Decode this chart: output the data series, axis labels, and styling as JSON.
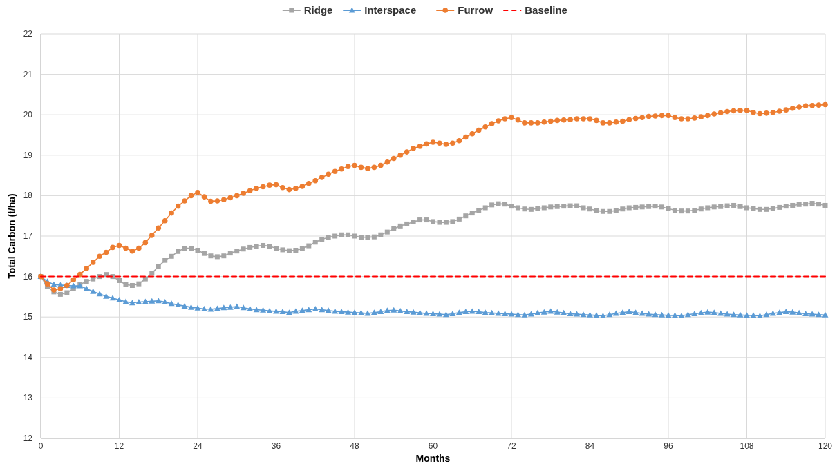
{
  "chart_data": {
    "type": "line",
    "xlabel": "Months",
    "ylabel": "Total Carbon (t/ha)",
    "x": [
      0,
      1,
      2,
      3,
      4,
      5,
      6,
      7,
      8,
      9,
      10,
      11,
      12,
      13,
      14,
      15,
      16,
      17,
      18,
      19,
      20,
      21,
      22,
      23,
      24,
      25,
      26,
      27,
      28,
      29,
      30,
      31,
      32,
      33,
      34,
      35,
      36,
      37,
      38,
      39,
      40,
      41,
      42,
      43,
      44,
      45,
      46,
      47,
      48,
      49,
      50,
      51,
      52,
      53,
      54,
      55,
      56,
      57,
      58,
      59,
      60,
      61,
      62,
      63,
      64,
      65,
      66,
      67,
      68,
      69,
      70,
      71,
      72,
      73,
      74,
      75,
      76,
      77,
      78,
      79,
      80,
      81,
      82,
      83,
      84,
      85,
      86,
      87,
      88,
      89,
      90,
      91,
      92,
      93,
      94,
      95,
      96,
      97,
      98,
      99,
      100,
      101,
      102,
      103,
      104,
      105,
      106,
      107,
      108,
      109,
      110,
      111,
      112,
      113,
      114,
      115,
      116,
      117,
      118,
      119,
      120
    ],
    "xlim": [
      0,
      120
    ],
    "xticks": [
      0,
      12,
      24,
      36,
      48,
      60,
      72,
      84,
      96,
      108,
      120
    ],
    "ylim": [
      12,
      22
    ],
    "yticks": [
      12,
      13,
      14,
      15,
      16,
      17,
      18,
      19,
      20,
      21,
      22
    ],
    "grid": true,
    "legend": "top",
    "series": [
      {
        "name": "Ridge",
        "color": "#a5a5a5",
        "marker": "square",
        "line_style": "solid",
        "values": [
          16.0,
          15.75,
          15.62,
          15.56,
          15.6,
          15.7,
          15.8,
          15.88,
          15.94,
          16.0,
          16.05,
          16.0,
          15.9,
          15.8,
          15.78,
          15.82,
          15.94,
          16.08,
          16.25,
          16.4,
          16.5,
          16.62,
          16.7,
          16.7,
          16.65,
          16.57,
          16.51,
          16.49,
          16.51,
          16.58,
          16.63,
          16.68,
          16.72,
          16.75,
          16.77,
          16.75,
          16.7,
          16.66,
          16.64,
          16.65,
          16.69,
          16.76,
          16.85,
          16.92,
          16.97,
          17.0,
          17.03,
          17.03,
          17.0,
          16.97,
          16.97,
          16.98,
          17.03,
          17.1,
          17.18,
          17.25,
          17.3,
          17.35,
          17.4,
          17.4,
          17.36,
          17.34,
          17.34,
          17.36,
          17.42,
          17.5,
          17.57,
          17.64,
          17.7,
          17.77,
          17.8,
          17.79,
          17.74,
          17.7,
          17.67,
          17.66,
          17.68,
          17.7,
          17.72,
          17.73,
          17.74,
          17.75,
          17.75,
          17.7,
          17.67,
          17.63,
          17.61,
          17.61,
          17.63,
          17.67,
          17.7,
          17.71,
          17.72,
          17.73,
          17.74,
          17.72,
          17.68,
          17.64,
          17.62,
          17.62,
          17.64,
          17.67,
          17.7,
          17.72,
          17.73,
          17.75,
          17.76,
          17.73,
          17.7,
          17.68,
          17.66,
          17.66,
          17.68,
          17.71,
          17.74,
          17.76,
          17.78,
          17.79,
          17.81,
          17.79,
          17.76
        ]
      },
      {
        "name": "Interspace",
        "color": "#5b9bd5",
        "marker": "triangle",
        "line_style": "solid",
        "values": [
          16.0,
          15.88,
          15.8,
          15.79,
          15.78,
          15.77,
          15.77,
          15.7,
          15.63,
          15.57,
          15.51,
          15.47,
          15.42,
          15.38,
          15.35,
          15.37,
          15.38,
          15.39,
          15.4,
          15.37,
          15.33,
          15.3,
          15.27,
          15.24,
          15.22,
          15.2,
          15.19,
          15.21,
          15.23,
          15.24,
          15.26,
          15.23,
          15.2,
          15.18,
          15.17,
          15.15,
          15.14,
          15.13,
          15.11,
          15.14,
          15.16,
          15.18,
          15.2,
          15.18,
          15.16,
          15.14,
          15.13,
          15.12,
          15.11,
          15.1,
          15.09,
          15.11,
          15.13,
          15.16,
          15.17,
          15.15,
          15.13,
          15.12,
          15.1,
          15.09,
          15.08,
          15.07,
          15.06,
          15.08,
          15.11,
          15.13,
          15.14,
          15.13,
          15.11,
          15.1,
          15.09,
          15.08,
          15.07,
          15.06,
          15.05,
          15.07,
          15.1,
          15.12,
          15.14,
          15.12,
          15.1,
          15.08,
          15.07,
          15.06,
          15.05,
          15.04,
          15.03,
          15.06,
          15.09,
          15.11,
          15.13,
          15.11,
          15.09,
          15.07,
          15.06,
          15.05,
          15.04,
          15.04,
          15.03,
          15.06,
          15.08,
          15.1,
          15.12,
          15.11,
          15.09,
          15.07,
          15.06,
          15.05,
          15.04,
          15.04,
          15.03,
          15.06,
          15.09,
          15.11,
          15.13,
          15.12,
          15.1,
          15.08,
          15.07,
          15.06,
          15.05
        ]
      },
      {
        "name": "Furrow",
        "color": "#ed7d31",
        "marker": "circle",
        "line_style": "solid",
        "values": [
          16.0,
          15.82,
          15.67,
          15.7,
          15.78,
          15.92,
          16.05,
          16.2,
          16.35,
          16.5,
          16.6,
          16.72,
          16.77,
          16.7,
          16.63,
          16.7,
          16.84,
          17.02,
          17.2,
          17.38,
          17.57,
          17.74,
          17.87,
          18.0,
          18.08,
          17.97,
          17.86,
          17.87,
          17.9,
          17.95,
          18.0,
          18.06,
          18.12,
          18.18,
          18.22,
          18.26,
          18.27,
          18.2,
          18.15,
          18.18,
          18.23,
          18.3,
          18.37,
          18.45,
          18.53,
          18.6,
          18.66,
          18.72,
          18.75,
          18.7,
          18.67,
          18.7,
          18.75,
          18.83,
          18.92,
          19.0,
          19.08,
          19.17,
          19.22,
          19.28,
          19.32,
          19.3,
          19.27,
          19.3,
          19.36,
          19.45,
          19.53,
          19.62,
          19.7,
          19.78,
          19.85,
          19.9,
          19.93,
          19.87,
          19.8,
          19.8,
          19.8,
          19.82,
          19.84,
          19.86,
          19.87,
          19.88,
          19.9,
          19.9,
          19.9,
          19.86,
          19.8,
          19.8,
          19.82,
          19.84,
          19.88,
          19.91,
          19.93,
          19.96,
          19.97,
          19.98,
          19.98,
          19.93,
          19.9,
          19.9,
          19.92,
          19.95,
          19.98,
          20.02,
          20.05,
          20.08,
          20.1,
          20.11,
          20.11,
          20.06,
          20.03,
          20.04,
          20.06,
          20.09,
          20.12,
          20.16,
          20.19,
          20.22,
          20.23,
          20.24,
          20.25
        ]
      },
      {
        "name": "Baseline",
        "color": "#ff0000",
        "marker": "none",
        "line_style": "dashed",
        "x": [
          0,
          120
        ],
        "values": [
          16,
          16
        ]
      }
    ]
  }
}
